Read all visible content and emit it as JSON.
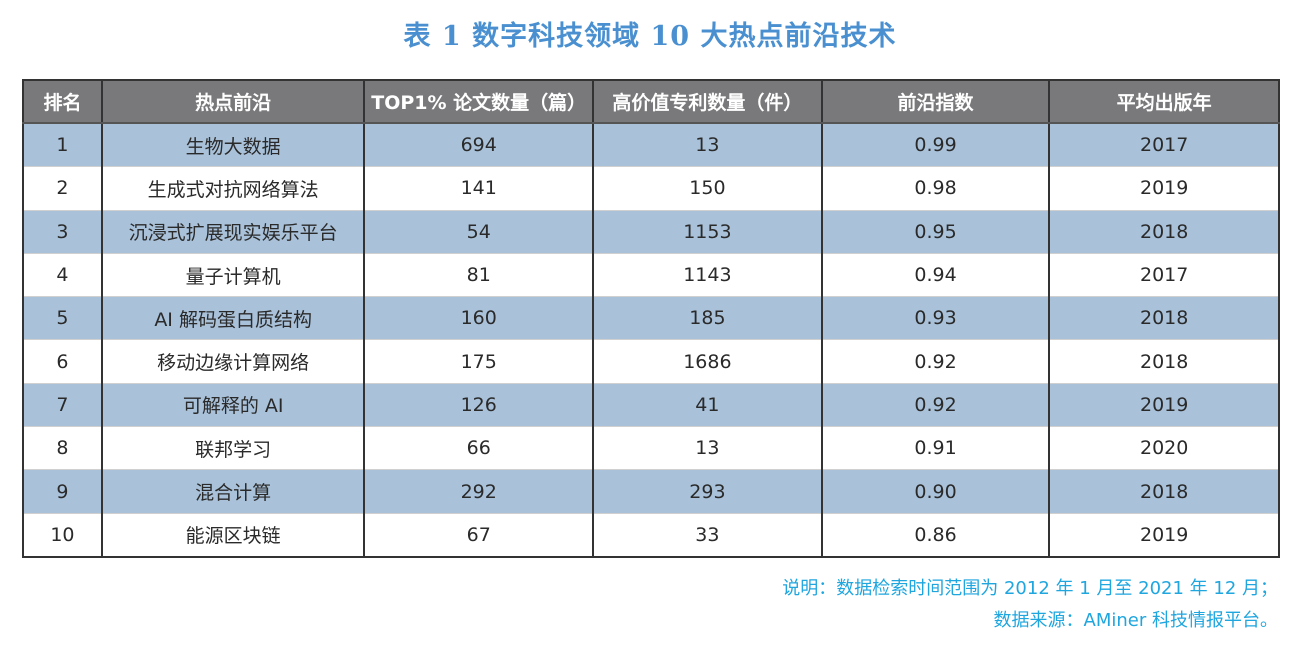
{
  "title": "表 1  数字科技领域 10 大热点前沿技术",
  "colors": {
    "title": "#4a90d0",
    "header_bg": "#79797b",
    "row_highlight": "#a9c2da",
    "note": "#1fa6df"
  },
  "table": {
    "headers": [
      "排名",
      "热点前沿",
      "TOP1% 论文数量（篇）",
      "高价值专利数量（件）",
      "前沿指数",
      "平均出版年"
    ],
    "rows": [
      [
        "1",
        "生物大数据",
        "694",
        "13",
        "0.99",
        "2017"
      ],
      [
        "2",
        "生成式对抗网络算法",
        "141",
        "150",
        "0.98",
        "2019"
      ],
      [
        "3",
        "沉浸式扩展现实娱乐平台",
        "54",
        "1153",
        "0.95",
        "2018"
      ],
      [
        "4",
        "量子计算机",
        "81",
        "1143",
        "0.94",
        "2017"
      ],
      [
        "5",
        "AI 解码蛋白质结构",
        "160",
        "185",
        "0.93",
        "2018"
      ],
      [
        "6",
        "移动边缘计算网络",
        "175",
        "1686",
        "0.92",
        "2018"
      ],
      [
        "7",
        "可解释的 AI",
        "126",
        "41",
        "0.92",
        "2019"
      ],
      [
        "8",
        "联邦学习",
        "66",
        "13",
        "0.91",
        "2020"
      ],
      [
        "9",
        "混合计算",
        "292",
        "293",
        "0.90",
        "2018"
      ],
      [
        "10",
        "能源区块链",
        "67",
        "33",
        "0.86",
        "2019"
      ]
    ]
  },
  "notes": [
    "说明：数据检索时间范围为 2012 年 1 月至 2021 年 12 月；",
    "数据来源：AMiner 科技情报平台。"
  ]
}
